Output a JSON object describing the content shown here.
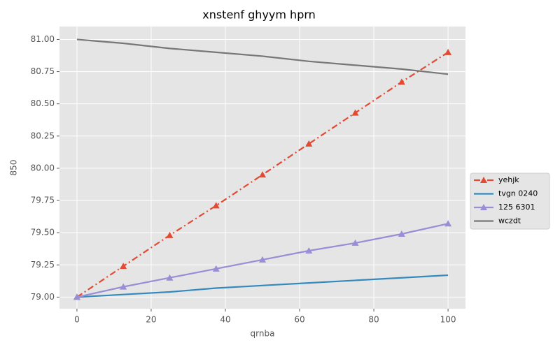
{
  "chart_data": {
    "type": "line",
    "title": "xnstenf ghyym hprn",
    "x_label": "qrnba",
    "y_label": "850",
    "x": [
      0,
      12.5,
      25,
      37.5,
      50,
      62.5,
      75,
      87.5,
      100
    ],
    "series": [
      {
        "name": "yehjk",
        "color": "#e24a33",
        "linestyle": "dashdot",
        "marker": "triangle",
        "values": [
          79.0,
          79.24,
          79.48,
          79.71,
          79.95,
          80.19,
          80.43,
          80.67,
          80.9
        ]
      },
      {
        "name": "tvgn 0240",
        "color": "#348abd",
        "linestyle": "solid",
        "marker": "none",
        "values": [
          79.0,
          79.02,
          79.04,
          79.07,
          79.09,
          79.11,
          79.13,
          79.15,
          79.17
        ]
      },
      {
        "name": "125 6301",
        "color": "#988ed5",
        "linestyle": "solid",
        "marker": "triangle",
        "values": [
          79.0,
          79.08,
          79.15,
          79.22,
          79.29,
          79.36,
          79.42,
          79.49,
          79.57
        ]
      },
      {
        "name": "wczdt",
        "color": "#777777",
        "linestyle": "solid",
        "marker": "none",
        "values": [
          81.0,
          80.97,
          80.93,
          80.9,
          80.87,
          80.83,
          80.8,
          80.77,
          80.73
        ]
      }
    ],
    "xlim": [
      -4.7,
      104.7
    ],
    "ylim": [
      78.91,
      81.1
    ],
    "xticks": [
      0,
      20,
      40,
      60,
      80,
      100
    ],
    "yticks": [
      {
        "value": 79,
        "label": "79.00"
      },
      {
        "value": 79.25,
        "label": "79.25"
      },
      {
        "value": 79.5,
        "label": "79.50"
      },
      {
        "value": 79.75,
        "label": "79.75"
      },
      {
        "value": 80,
        "label": "80.00"
      },
      {
        "value": 80.25,
        "label": "80.25"
      },
      {
        "value": 80.5,
        "label": "80.50"
      },
      {
        "value": 80.75,
        "label": "80.75"
      },
      {
        "value": 81,
        "label": "81.00"
      }
    ],
    "grid": true,
    "legend": "right"
  }
}
